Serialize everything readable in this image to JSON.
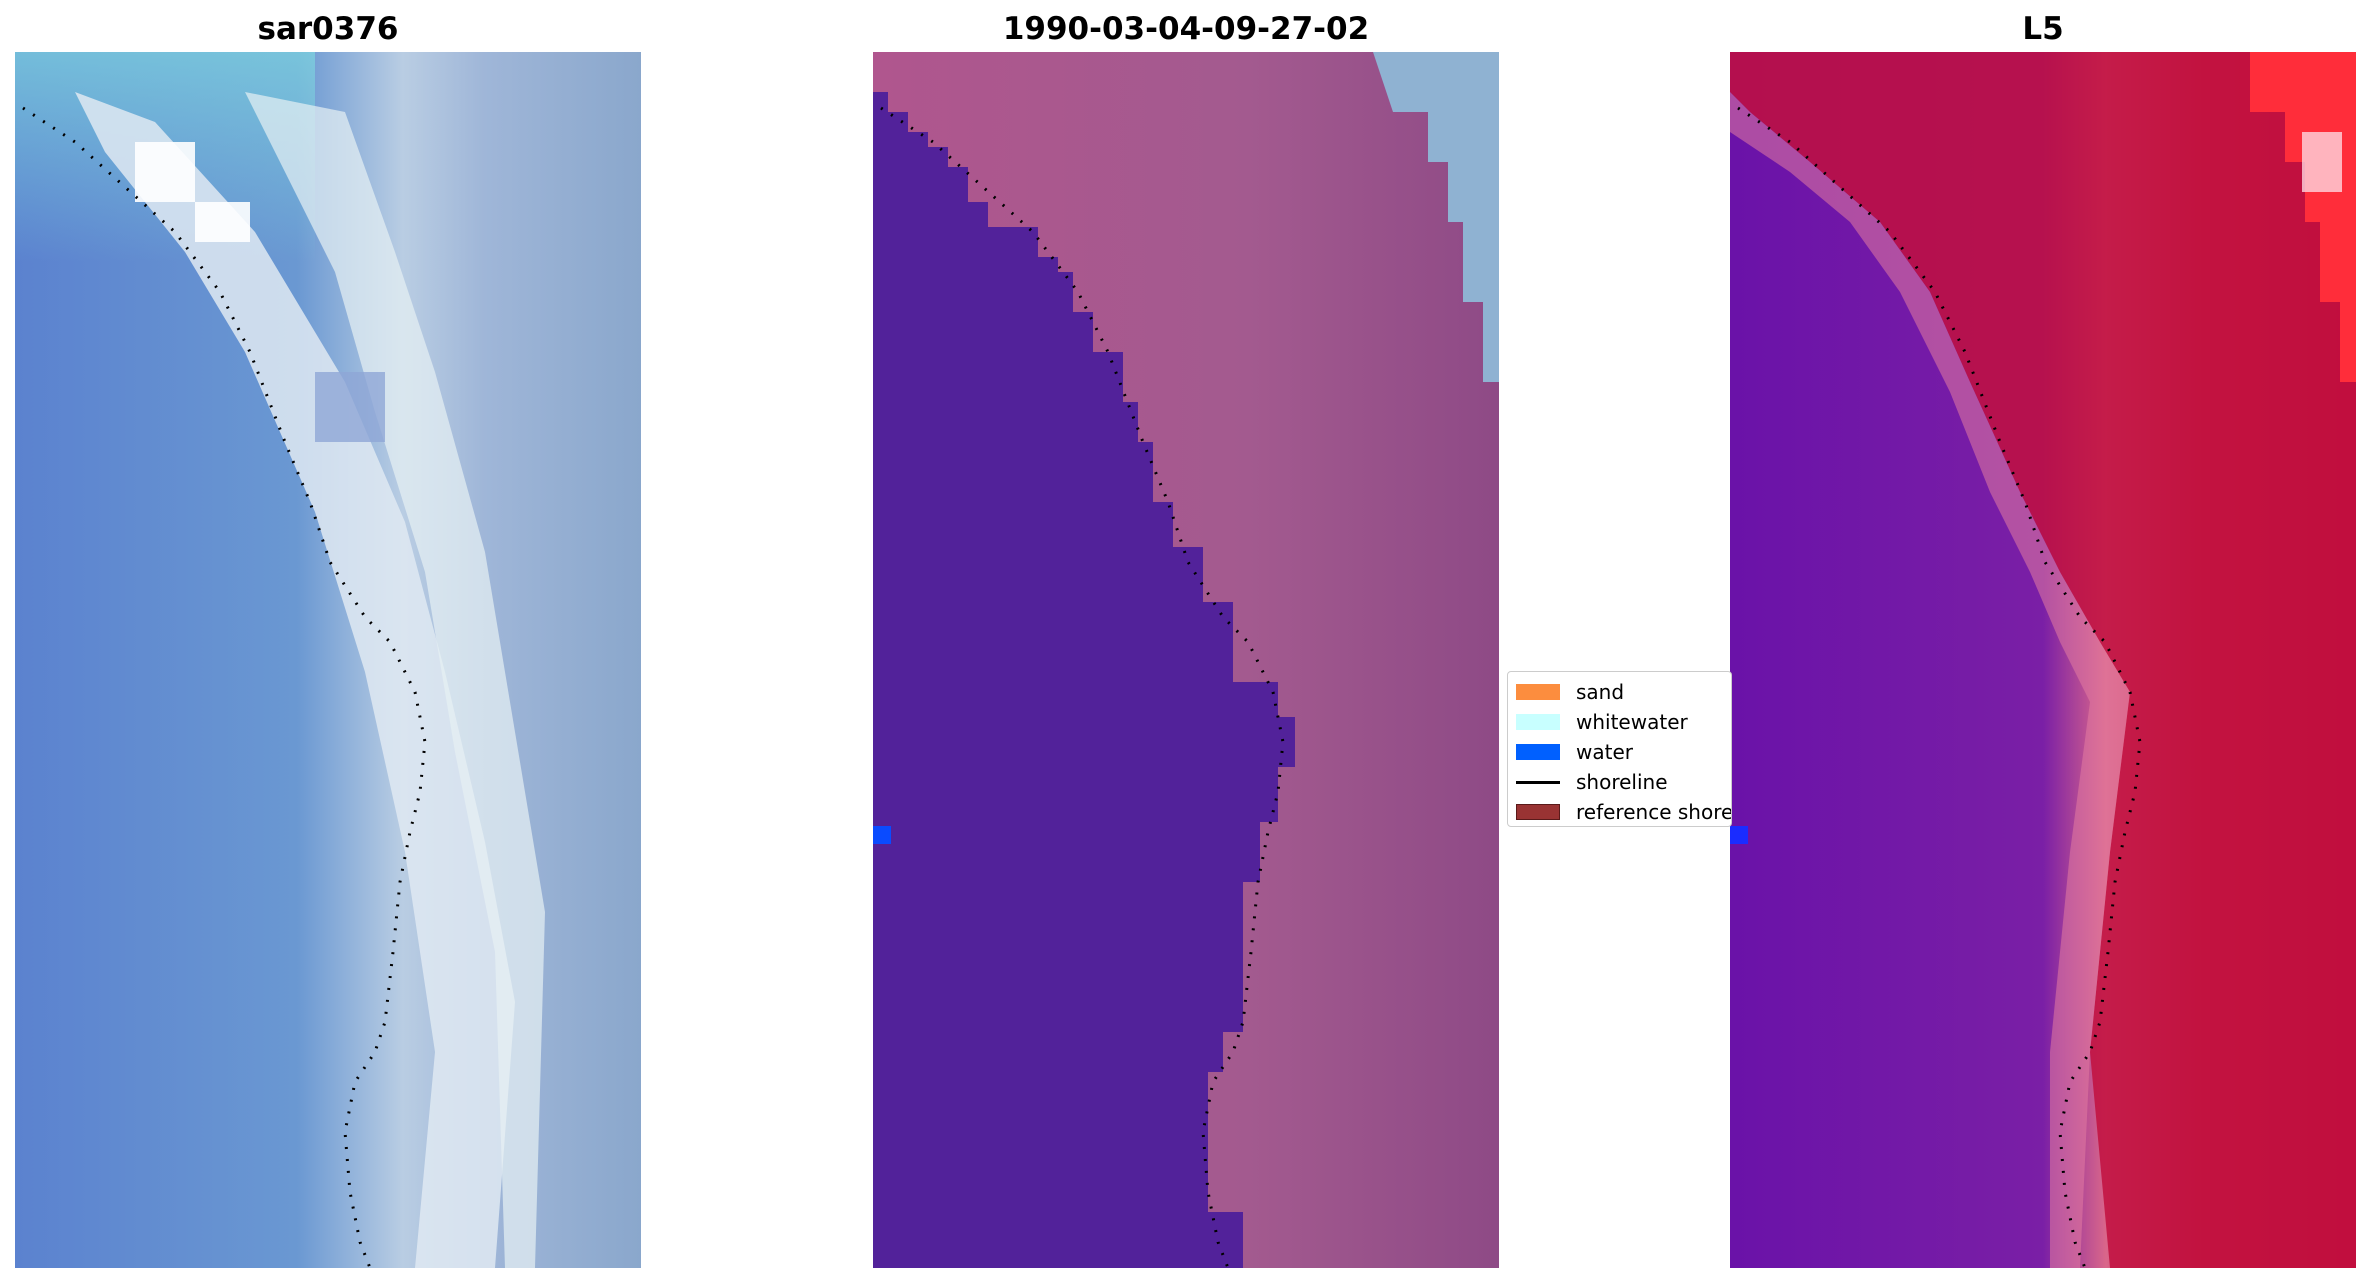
{
  "panels": [
    {
      "id": "left",
      "title": "sar0376",
      "icon": "rgb-satellite-image"
    },
    {
      "id": "mid",
      "title": "1990-03-04-09-27-02",
      "icon": "classified-image"
    },
    {
      "id": "right",
      "title": "L5",
      "icon": "index-map-image"
    }
  ],
  "legend": {
    "items": [
      {
        "label": "sand",
        "color": "#FC8D3E",
        "kind": "patch"
      },
      {
        "label": "whitewater",
        "color": "#C8FFFF",
        "kind": "patch"
      },
      {
        "label": "water",
        "color": "#0060FF",
        "kind": "patch"
      },
      {
        "label": "shoreline",
        "color": "#000000",
        "kind": "line"
      },
      {
        "label": "reference shoreline",
        "color": "#993333",
        "kind": "patch"
      }
    ]
  },
  "colors": {
    "water_class": "#52229A",
    "shoreline_dots": "#000000",
    "index_low": "#6A12A8",
    "index_high": "#C20A3C"
  }
}
